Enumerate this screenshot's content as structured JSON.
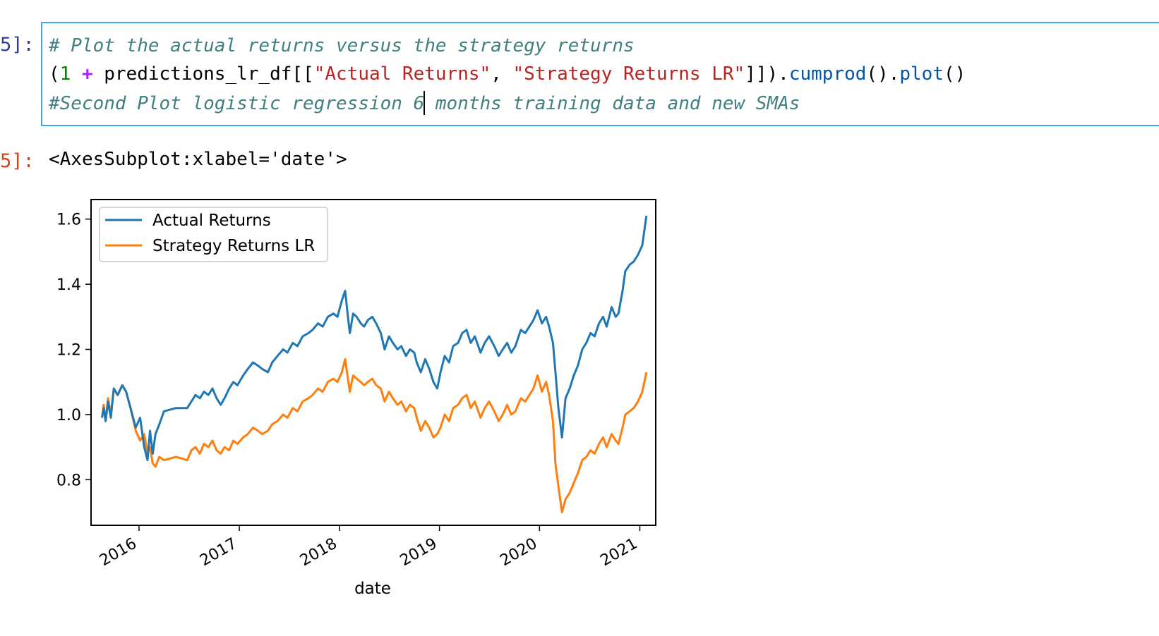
{
  "cell": {
    "in_prompt": "5]:",
    "out_prompt": "5]:",
    "code": {
      "line1_comment": "# Plot the actual returns versus the strategy returns",
      "line2": {
        "open": "(",
        "num": "1",
        "plus": "+",
        "var": "predictions_lr_df[[",
        "str1": "\"Actual Returns\"",
        "comma": ", ",
        "str2": "\"Strategy Returns LR\"",
        "close": "]]).",
        "fn1": "cumprod",
        "mid": "().",
        "fn2": "plot",
        "end": "()"
      },
      "line3_before_cursor": "#Second Plot logistic regression 6",
      "line3_after_cursor": " months training data and new SMAs"
    },
    "output_repr": "<AxesSubplot:xlabel='date'>"
  },
  "colors": {
    "actual": "#1f77b4",
    "strategy": "#ff7f0e",
    "input_border": "#42a5f5",
    "prompt_in": "#303f9f",
    "prompt_out": "#d84315"
  },
  "chart_data": {
    "type": "line",
    "title": "",
    "xlabel": "date",
    "ylabel": "",
    "x_tick_labels": [
      "2016",
      "2017",
      "2018",
      "2019",
      "2020",
      "2021"
    ],
    "y_tick_labels": [
      "0.8",
      "1.0",
      "1.2",
      "1.4",
      "1.6"
    ],
    "ylim": [
      0.66,
      1.66
    ],
    "xlim": [
      "2015-07-10",
      "2021-02-28"
    ],
    "grid": false,
    "legend_position": "upper left",
    "series": [
      {
        "name": "Actual Returns",
        "x": [
          "2015-08-19",
          "2015-08-25",
          "2015-09-01",
          "2015-09-10",
          "2015-09-20",
          "2015-10-01",
          "2015-10-15",
          "2015-11-01",
          "2015-11-15",
          "2015-12-01",
          "2015-12-20",
          "2016-01-05",
          "2016-01-20",
          "2016-02-01",
          "2016-02-10",
          "2016-02-20",
          "2016-03-01",
          "2016-03-15",
          "2016-04-01",
          "2016-05-15",
          "2016-06-25",
          "2016-07-10",
          "2016-07-25",
          "2016-08-10",
          "2016-08-25",
          "2016-09-10",
          "2016-09-25",
          "2016-10-10",
          "2016-10-25",
          "2016-11-08",
          "2016-11-25",
          "2016-12-10",
          "2016-12-25",
          "2017-01-15",
          "2017-02-01",
          "2017-02-20",
          "2017-03-10",
          "2017-03-25",
          "2017-04-15",
          "2017-05-01",
          "2017-05-20",
          "2017-06-10",
          "2017-06-25",
          "2017-07-15",
          "2017-08-01",
          "2017-08-20",
          "2017-09-10",
          "2017-09-25",
          "2017-10-15",
          "2017-11-01",
          "2017-11-20",
          "2017-12-10",
          "2017-12-25",
          "2018-01-10",
          "2018-01-22",
          "2018-02-01",
          "2018-02-08",
          "2018-02-20",
          "2018-03-05",
          "2018-03-20",
          "2018-04-01",
          "2018-04-15",
          "2018-05-01",
          "2018-05-15",
          "2018-06-01",
          "2018-06-15",
          "2018-07-01",
          "2018-07-15",
          "2018-08-01",
          "2018-08-15",
          "2018-09-01",
          "2018-09-15",
          "2018-10-01",
          "2018-10-10",
          "2018-10-25",
          "2018-11-10",
          "2018-11-25",
          "2018-12-10",
          "2018-12-24",
          "2019-01-05",
          "2019-01-20",
          "2019-02-05",
          "2019-02-20",
          "2019-03-10",
          "2019-03-25",
          "2019-04-10",
          "2019-04-25",
          "2019-05-10",
          "2019-05-31",
          "2019-06-15",
          "2019-07-01",
          "2019-07-20",
          "2019-08-05",
          "2019-08-20",
          "2019-09-05",
          "2019-09-20",
          "2019-10-05",
          "2019-10-25",
          "2019-11-10",
          "2019-11-25",
          "2019-12-10",
          "2019-12-25",
          "2020-01-10",
          "2020-01-25",
          "2020-02-05",
          "2020-02-19",
          "2020-02-28",
          "2020-03-10",
          "2020-03-23",
          "2020-04-05",
          "2020-04-20",
          "2020-05-05",
          "2020-05-20",
          "2020-06-05",
          "2020-06-20",
          "2020-07-05",
          "2020-07-20",
          "2020-08-05",
          "2020-08-20",
          "2020-09-02",
          "2020-09-20",
          "2020-10-05",
          "2020-10-15",
          "2020-10-30",
          "2020-11-09",
          "2020-11-25",
          "2020-12-10",
          "2020-12-25",
          "2021-01-10",
          "2021-01-25"
        ],
        "y": [
          0.99,
          1.02,
          0.98,
          1.04,
          0.99,
          1.08,
          1.06,
          1.09,
          1.07,
          1.02,
          0.96,
          0.99,
          0.9,
          0.86,
          0.95,
          0.88,
          0.94,
          0.97,
          1.01,
          1.02,
          1.02,
          1.04,
          1.06,
          1.05,
          1.07,
          1.06,
          1.08,
          1.05,
          1.03,
          1.05,
          1.08,
          1.1,
          1.09,
          1.12,
          1.14,
          1.16,
          1.15,
          1.14,
          1.13,
          1.16,
          1.18,
          1.2,
          1.19,
          1.22,
          1.21,
          1.24,
          1.25,
          1.26,
          1.28,
          1.27,
          1.3,
          1.31,
          1.3,
          1.35,
          1.38,
          1.3,
          1.25,
          1.31,
          1.3,
          1.28,
          1.27,
          1.29,
          1.3,
          1.28,
          1.25,
          1.2,
          1.24,
          1.22,
          1.2,
          1.21,
          1.18,
          1.2,
          1.19,
          1.16,
          1.13,
          1.17,
          1.14,
          1.1,
          1.08,
          1.13,
          1.18,
          1.16,
          1.21,
          1.22,
          1.25,
          1.26,
          1.22,
          1.24,
          1.19,
          1.22,
          1.24,
          1.21,
          1.18,
          1.2,
          1.22,
          1.19,
          1.21,
          1.26,
          1.25,
          1.27,
          1.29,
          1.32,
          1.28,
          1.3,
          1.27,
          1.22,
          1.13,
          1.02,
          0.93,
          1.05,
          1.08,
          1.12,
          1.15,
          1.2,
          1.22,
          1.25,
          1.24,
          1.28,
          1.3,
          1.27,
          1.33,
          1.3,
          1.31,
          1.38,
          1.44,
          1.46,
          1.47,
          1.49,
          1.52,
          1.61
        ]
      },
      {
        "name": "Strategy Returns LR",
        "x": [
          "2015-08-19",
          "2015-08-25",
          "2015-09-01",
          "2015-09-10",
          "2015-09-20",
          "2015-10-01",
          "2015-10-15",
          "2015-11-01",
          "2015-11-15",
          "2015-12-01",
          "2015-12-20",
          "2016-01-05",
          "2016-01-20",
          "2016-02-01",
          "2016-02-10",
          "2016-02-20",
          "2016-03-01",
          "2016-03-15",
          "2016-04-01",
          "2016-05-15",
          "2016-06-25",
          "2016-07-10",
          "2016-07-25",
          "2016-08-10",
          "2016-08-25",
          "2016-09-10",
          "2016-09-25",
          "2016-10-10",
          "2016-10-25",
          "2016-11-08",
          "2016-11-25",
          "2016-12-10",
          "2016-12-25",
          "2017-01-15",
          "2017-02-01",
          "2017-02-20",
          "2017-03-10",
          "2017-03-25",
          "2017-04-15",
          "2017-05-01",
          "2017-05-20",
          "2017-06-10",
          "2017-06-25",
          "2017-07-15",
          "2017-08-01",
          "2017-08-20",
          "2017-09-10",
          "2017-09-25",
          "2017-10-15",
          "2017-11-01",
          "2017-11-20",
          "2017-12-10",
          "2017-12-25",
          "2018-01-10",
          "2018-01-22",
          "2018-02-01",
          "2018-02-08",
          "2018-02-20",
          "2018-03-05",
          "2018-03-20",
          "2018-04-01",
          "2018-04-15",
          "2018-05-01",
          "2018-05-15",
          "2018-06-01",
          "2018-06-15",
          "2018-07-01",
          "2018-07-15",
          "2018-08-01",
          "2018-08-15",
          "2018-09-01",
          "2018-09-15",
          "2018-10-01",
          "2018-10-10",
          "2018-10-25",
          "2018-11-10",
          "2018-11-25",
          "2018-12-10",
          "2018-12-24",
          "2019-01-05",
          "2019-01-20",
          "2019-02-05",
          "2019-02-20",
          "2019-03-10",
          "2019-03-25",
          "2019-04-10",
          "2019-04-25",
          "2019-05-10",
          "2019-05-31",
          "2019-06-15",
          "2019-07-01",
          "2019-07-20",
          "2019-08-05",
          "2019-08-20",
          "2019-09-05",
          "2019-09-20",
          "2019-10-05",
          "2019-10-25",
          "2019-11-10",
          "2019-11-25",
          "2019-12-10",
          "2019-12-25",
          "2020-01-10",
          "2020-01-25",
          "2020-02-05",
          "2020-02-19",
          "2020-02-28",
          "2020-03-10",
          "2020-03-23",
          "2020-04-05",
          "2020-04-20",
          "2020-05-05",
          "2020-05-20",
          "2020-06-05",
          "2020-06-20",
          "2020-07-05",
          "2020-07-20",
          "2020-08-05",
          "2020-08-20",
          "2020-09-02",
          "2020-09-20",
          "2020-10-05",
          "2020-10-15",
          "2020-10-30",
          "2020-11-09",
          "2020-11-25",
          "2020-12-10",
          "2020-12-25",
          "2021-01-10",
          "2021-01-25"
        ],
        "y": [
          0.99,
          1.03,
          0.98,
          1.05,
          1.0,
          1.08,
          1.06,
          1.09,
          1.07,
          1.02,
          0.95,
          0.92,
          0.94,
          0.88,
          0.9,
          0.85,
          0.84,
          0.87,
          0.86,
          0.87,
          0.86,
          0.89,
          0.9,
          0.88,
          0.91,
          0.9,
          0.92,
          0.89,
          0.88,
          0.9,
          0.89,
          0.92,
          0.91,
          0.93,
          0.94,
          0.96,
          0.95,
          0.94,
          0.95,
          0.97,
          0.98,
          1.0,
          0.99,
          1.02,
          1.01,
          1.04,
          1.05,
          1.06,
          1.08,
          1.07,
          1.1,
          1.11,
          1.1,
          1.13,
          1.17,
          1.11,
          1.07,
          1.12,
          1.11,
          1.1,
          1.09,
          1.1,
          1.11,
          1.09,
          1.08,
          1.04,
          1.07,
          1.05,
          1.03,
          1.04,
          1.01,
          1.03,
          1.02,
          0.99,
          0.95,
          0.98,
          0.96,
          0.93,
          0.94,
          0.96,
          1.0,
          0.98,
          1.02,
          1.03,
          1.05,
          1.06,
          1.02,
          1.04,
          0.99,
          1.02,
          1.04,
          1.01,
          0.98,
          1.0,
          1.03,
          1.0,
          1.01,
          1.05,
          1.04,
          1.06,
          1.08,
          1.12,
          1.07,
          1.1,
          1.06,
          0.98,
          0.85,
          0.78,
          0.7,
          0.74,
          0.76,
          0.79,
          0.82,
          0.86,
          0.87,
          0.89,
          0.88,
          0.91,
          0.93,
          0.9,
          0.94,
          0.92,
          0.91,
          0.96,
          1.0,
          1.01,
          1.02,
          1.04,
          1.07,
          1.13
        ]
      }
    ]
  }
}
